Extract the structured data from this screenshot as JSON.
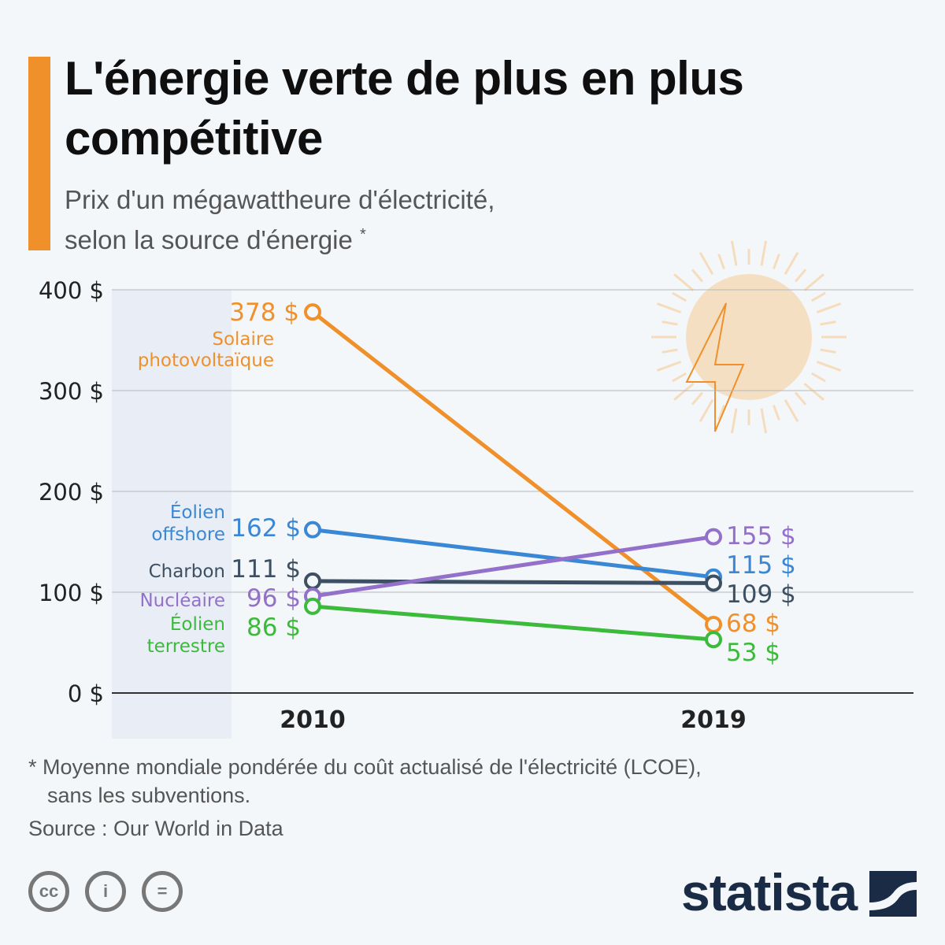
{
  "header": {
    "title": "L'énergie verte de plus en plus compétitive",
    "subtitle_line1": "Prix d'un mégawattheure d'électricité,",
    "subtitle_line2": "selon la source d'énergie",
    "subtitle_mark": "*"
  },
  "footer": {
    "note_line1": "* Moyenne mondiale pondérée du coût actualisé de l'électricité (LCOE),",
    "note_line2": "sans les subventions.",
    "source": "Source : Our World in Data",
    "brand": "statista",
    "license_icons": [
      "cc-icon",
      "attribution-icon",
      "no-derivatives-icon"
    ]
  },
  "chart_data": {
    "type": "line",
    "title": "",
    "x": [
      "2010",
      "2019"
    ],
    "ylim": [
      0,
      400
    ],
    "yticks": [
      "0 $",
      "100 $",
      "200 $",
      "300 $",
      "400 $"
    ],
    "ytick_values": [
      0,
      100,
      200,
      300,
      400
    ],
    "grid": true,
    "series": [
      {
        "name": "Solaire photovoltaïque",
        "name_lines": [
          "Solaire",
          "photovoltaïque"
        ],
        "values": [
          378,
          68
        ],
        "labels": [
          "378 $",
          "68 $"
        ],
        "color": "#f0902a"
      },
      {
        "name": "Éolien offshore",
        "name_lines": [
          "Éolien",
          "offshore"
        ],
        "values": [
          162,
          115
        ],
        "labels": [
          "162 $",
          "115 $"
        ],
        "color": "#3a87d6"
      },
      {
        "name": "Charbon",
        "name_lines": [
          "Charbon"
        ],
        "values": [
          111,
          109
        ],
        "labels": [
          "111 $",
          "109 $"
        ],
        "color": "#3d4f63"
      },
      {
        "name": "Nucléaire",
        "name_lines": [
          "Nucléaire"
        ],
        "values": [
          96,
          155
        ],
        "labels": [
          "96 $",
          "155 $"
        ],
        "color": "#9370c9"
      },
      {
        "name": "Éolien terrestre",
        "name_lines": [
          "Éolien",
          "terrestre"
        ],
        "values": [
          86,
          53
        ],
        "labels": [
          "86 $",
          "53 $"
        ],
        "color": "#3bba3b"
      }
    ]
  }
}
